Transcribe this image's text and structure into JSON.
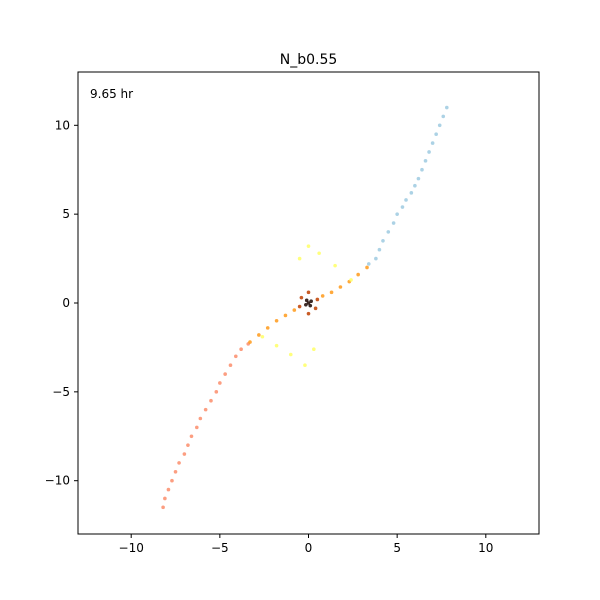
{
  "chart_data": {
    "type": "scatter",
    "title": "N_b0.55",
    "annotation": "9.65 hr",
    "xlabel": "",
    "ylabel": "",
    "xlim": [
      -13,
      13
    ],
    "ylim": [
      -13,
      13
    ],
    "x_ticks": [
      -10,
      -5,
      0,
      5,
      10
    ],
    "y_ticks": [
      -10,
      -5,
      0,
      5,
      10
    ],
    "x_tick_labels": [
      "−10",
      "−5",
      "0",
      "5",
      "10"
    ],
    "y_tick_labels": [
      "−10",
      "−5",
      "0",
      "5",
      "10"
    ],
    "grid": false,
    "legend": "none",
    "series": [
      {
        "color": "#9ecae1",
        "points": [
          [
            3.4,
            2.2
          ],
          [
            3.8,
            2.5
          ],
          [
            4.0,
            3.0
          ],
          [
            4.2,
            3.5
          ],
          [
            4.5,
            4.0
          ],
          [
            4.8,
            4.5
          ],
          [
            5.0,
            5.0
          ],
          [
            5.3,
            5.4
          ],
          [
            5.5,
            5.8
          ],
          [
            5.8,
            6.2
          ],
          [
            6.0,
            6.6
          ],
          [
            6.2,
            7.0
          ],
          [
            6.4,
            7.5
          ],
          [
            6.6,
            8.0
          ],
          [
            6.8,
            8.5
          ],
          [
            7.0,
            9.0
          ],
          [
            7.2,
            9.5
          ],
          [
            7.4,
            10.0
          ],
          [
            7.6,
            10.5
          ],
          [
            7.8,
            11.0
          ]
        ]
      },
      {
        "color": "#fc8d6b",
        "points": [
          [
            -3.4,
            -2.3
          ],
          [
            -3.8,
            -2.6
          ],
          [
            -4.1,
            -3.0
          ],
          [
            -4.4,
            -3.5
          ],
          [
            -4.7,
            -4.0
          ],
          [
            -5.0,
            -4.5
          ],
          [
            -5.2,
            -5.0
          ],
          [
            -5.5,
            -5.5
          ],
          [
            -5.8,
            -6.0
          ],
          [
            -6.1,
            -6.5
          ],
          [
            -6.3,
            -7.0
          ],
          [
            -6.6,
            -7.5
          ],
          [
            -6.8,
            -8.0
          ],
          [
            -7.0,
            -8.5
          ],
          [
            -7.3,
            -9.0
          ],
          [
            -7.5,
            -9.5
          ],
          [
            -7.7,
            -10.0
          ],
          [
            -7.9,
            -10.5
          ],
          [
            -8.1,
            -11.0
          ],
          [
            -8.2,
            -11.5
          ]
        ]
      },
      {
        "color": "#ff9a1a",
        "points": [
          [
            -3.3,
            -2.2
          ],
          [
            -2.8,
            -1.8
          ],
          [
            -2.3,
            -1.4
          ],
          [
            -1.8,
            -1.0
          ],
          [
            -1.3,
            -0.7
          ],
          [
            -0.8,
            -0.4
          ],
          [
            0.8,
            0.4
          ],
          [
            1.3,
            0.6
          ],
          [
            1.8,
            0.9
          ],
          [
            2.3,
            1.2
          ],
          [
            2.8,
            1.6
          ],
          [
            3.3,
            2.0
          ]
        ]
      },
      {
        "color": "#ffff66",
        "points": [
          [
            -0.5,
            2.5
          ],
          [
            0.6,
            2.8
          ],
          [
            1.5,
            2.1
          ],
          [
            -1.8,
            -2.4
          ],
          [
            -1.0,
            -2.9
          ],
          [
            0.3,
            -2.6
          ],
          [
            -2.6,
            -1.9
          ],
          [
            2.4,
            1.3
          ],
          [
            -0.2,
            -3.5
          ],
          [
            0.0,
            3.2
          ]
        ]
      },
      {
        "color": "#c04000",
        "points": [
          [
            -0.5,
            -0.2
          ],
          [
            0.5,
            0.2
          ],
          [
            -0.4,
            0.3
          ],
          [
            0.4,
            -0.3
          ],
          [
            0.0,
            0.6
          ],
          [
            0.0,
            -0.6
          ]
        ]
      },
      {
        "color": "#1a0500",
        "points": [
          [
            0.0,
            0.0
          ],
          [
            0.15,
            0.1
          ],
          [
            -0.15,
            -0.1
          ],
          [
            0.1,
            -0.15
          ],
          [
            -0.1,
            0.15
          ]
        ]
      }
    ]
  }
}
